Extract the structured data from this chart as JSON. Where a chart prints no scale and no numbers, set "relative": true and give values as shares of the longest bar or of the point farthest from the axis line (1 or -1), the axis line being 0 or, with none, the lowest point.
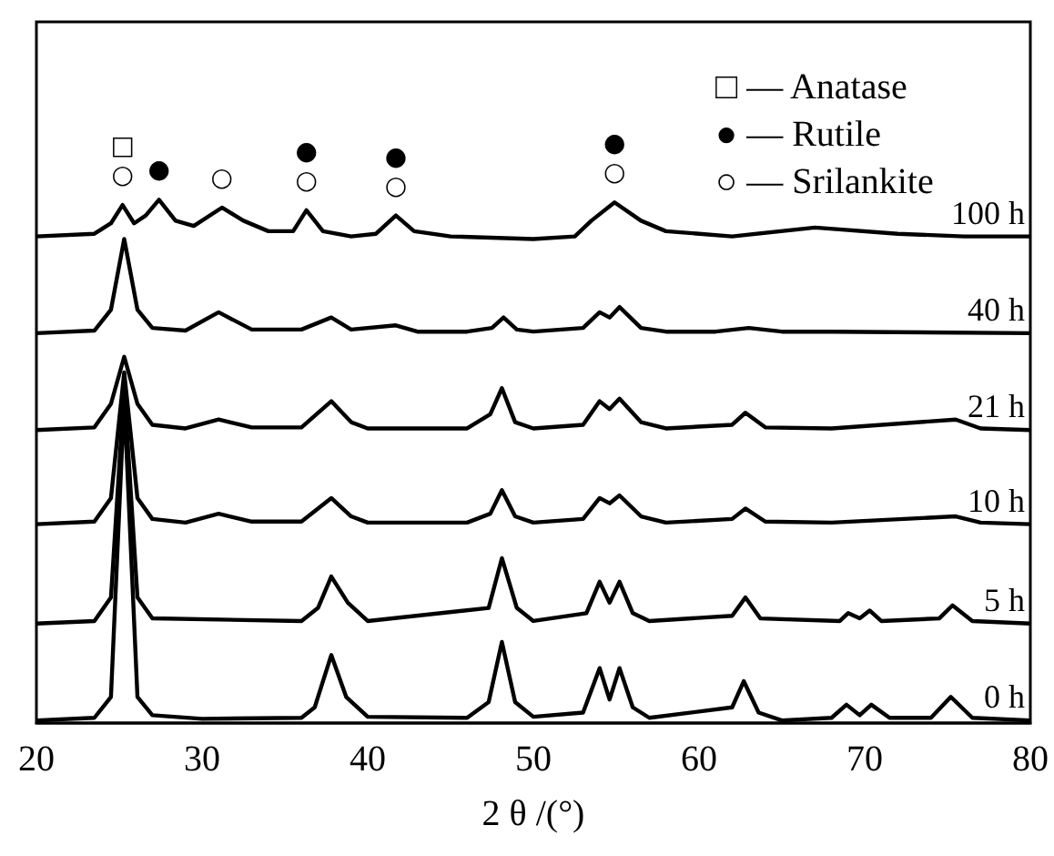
{
  "chart_data": {
    "type": "line",
    "relative": true,
    "xlabel": "2 θ /(°)",
    "xlim": [
      20,
      80
    ],
    "xticks": [
      20,
      30,
      40,
      50,
      60,
      70,
      80
    ],
    "series": [
      {
        "name": "0 h",
        "color": "#000000",
        "x": [
          20,
          23.5,
          24.5,
          25.3,
          26.1,
          27,
          30,
          36,
          36.8,
          37.8,
          38.7,
          40,
          46,
          47.3,
          48.1,
          48.9,
          50,
          53,
          54,
          54.6,
          55.2,
          56,
          57,
          62,
          62.7,
          63.6,
          65,
          68,
          68.9,
          69.7,
          70.4,
          71.5,
          74,
          75.2,
          76.5,
          80
        ],
        "values": [
          0.005,
          0.01,
          0.05,
          0.62,
          0.05,
          0.015,
          0.008,
          0.01,
          0.03,
          0.13,
          0.05,
          0.012,
          0.01,
          0.04,
          0.155,
          0.04,
          0.012,
          0.02,
          0.105,
          0.045,
          0.105,
          0.03,
          0.01,
          0.03,
          0.08,
          0.02,
          0.005,
          0.01,
          0.035,
          0.015,
          0.035,
          0.01,
          0.01,
          0.05,
          0.01,
          0.005
        ]
      },
      {
        "name": "5 h",
        "color": "#000000",
        "x": [
          20,
          23.5,
          24.5,
          25.3,
          26.1,
          27,
          36,
          37,
          37.8,
          38.8,
          40,
          47.3,
          48.1,
          49,
          50,
          53.2,
          54,
          54.6,
          55.2,
          56,
          57,
          62,
          62.8,
          63.7,
          68.5,
          69,
          69.7,
          70.3,
          71,
          74.5,
          75.3,
          76.5,
          80
        ],
        "values": [
          0.19,
          0.195,
          0.24,
          0.64,
          0.24,
          0.2,
          0.195,
          0.22,
          0.28,
          0.23,
          0.195,
          0.22,
          0.315,
          0.22,
          0.195,
          0.21,
          0.27,
          0.23,
          0.27,
          0.21,
          0.195,
          0.205,
          0.24,
          0.2,
          0.195,
          0.21,
          0.2,
          0.215,
          0.195,
          0.2,
          0.225,
          0.195,
          0.19
        ]
      },
      {
        "name": "10 h",
        "color": "#000000",
        "x": [
          20,
          23.5,
          24.5,
          25.3,
          26.1,
          27,
          29,
          31,
          33,
          36,
          37.8,
          39,
          40,
          46,
          47.4,
          48.1,
          48.9,
          50,
          53,
          54,
          54.6,
          55.2,
          56.5,
          58,
          62,
          62.8,
          64,
          68,
          75.5,
          77,
          80
        ],
        "values": [
          0.38,
          0.385,
          0.43,
          0.67,
          0.43,
          0.39,
          0.383,
          0.4,
          0.385,
          0.385,
          0.43,
          0.395,
          0.383,
          0.383,
          0.4,
          0.445,
          0.395,
          0.383,
          0.39,
          0.43,
          0.42,
          0.435,
          0.395,
          0.383,
          0.39,
          0.41,
          0.385,
          0.383,
          0.395,
          0.383,
          0.38
        ]
      },
      {
        "name": "21 h",
        "color": "#000000",
        "x": [
          20,
          23.5,
          24.5,
          25.3,
          26.1,
          27,
          29,
          31,
          33,
          36,
          37.8,
          39,
          40,
          46,
          47.4,
          48.1,
          48.9,
          50,
          53,
          54,
          54.6,
          55.2,
          56.5,
          58,
          62,
          62.8,
          64,
          68,
          75.5,
          77,
          80
        ],
        "values": [
          0.56,
          0.565,
          0.61,
          0.7,
          0.61,
          0.57,
          0.563,
          0.58,
          0.565,
          0.565,
          0.615,
          0.575,
          0.563,
          0.563,
          0.59,
          0.64,
          0.575,
          0.563,
          0.57,
          0.615,
          0.6,
          0.62,
          0.575,
          0.563,
          0.57,
          0.593,
          0.565,
          0.563,
          0.58,
          0.563,
          0.56
        ]
      },
      {
        "name": "40 h",
        "color": "#000000",
        "x": [
          20,
          23.5,
          24.5,
          25.3,
          26.1,
          27,
          29,
          31,
          33,
          36,
          37.8,
          39,
          41.7,
          43,
          46,
          47.5,
          48.2,
          49,
          50,
          53,
          54,
          54.6,
          55.2,
          56.5,
          58,
          61,
          63,
          65,
          68,
          80
        ],
        "values": [
          0.745,
          0.75,
          0.79,
          0.925,
          0.79,
          0.755,
          0.75,
          0.785,
          0.752,
          0.752,
          0.775,
          0.752,
          0.76,
          0.748,
          0.748,
          0.755,
          0.775,
          0.752,
          0.748,
          0.755,
          0.785,
          0.775,
          0.795,
          0.755,
          0.748,
          0.748,
          0.755,
          0.748,
          0.748,
          0.745
        ]
      },
      {
        "name": "100 h",
        "color": "#000000",
        "x": [
          20,
          23.5,
          24.5,
          25.2,
          25.9,
          26.6,
          27.4,
          28.4,
          29.5,
          31.2,
          32.5,
          34,
          35.5,
          36.3,
          37.3,
          39,
          40.5,
          41.7,
          42.8,
          45,
          50,
          52.5,
          53.5,
          54.9,
          56.5,
          58,
          62,
          67,
          72,
          76,
          80
        ],
        "values": [
          0.93,
          0.935,
          0.955,
          0.99,
          0.955,
          0.97,
          1.0,
          0.96,
          0.95,
          0.985,
          0.96,
          0.94,
          0.94,
          0.98,
          0.94,
          0.93,
          0.935,
          0.97,
          0.94,
          0.93,
          0.925,
          0.93,
          0.96,
          0.995,
          0.96,
          0.94,
          0.93,
          0.947,
          0.935,
          0.93,
          0.93
        ]
      }
    ],
    "annotations": [
      "□ — Anatase",
      "● — Rutile",
      "○ — Srilankite",
      {
        "text": "○",
        "x": 25.2,
        "y": 0.99
      },
      {
        "text": "□",
        "x": 25.2,
        "y": 0.99
      },
      {
        "text": "●",
        "x": 27.4,
        "y": 1.0
      },
      {
        "text": "○",
        "x": 31.2,
        "y": 0.985
      },
      {
        "text": "○",
        "x": 36.3,
        "y": 0.98
      },
      {
        "text": "●",
        "x": 36.3,
        "y": 0.98
      },
      {
        "text": "○",
        "x": 41.7,
        "y": 0.97
      },
      {
        "text": "●",
        "x": 41.7,
        "y": 0.97
      },
      {
        "text": "○",
        "x": 54.9,
        "y": 0.995
      },
      {
        "text": "●",
        "x": 54.9,
        "y": 0.995
      }
    ]
  }
}
